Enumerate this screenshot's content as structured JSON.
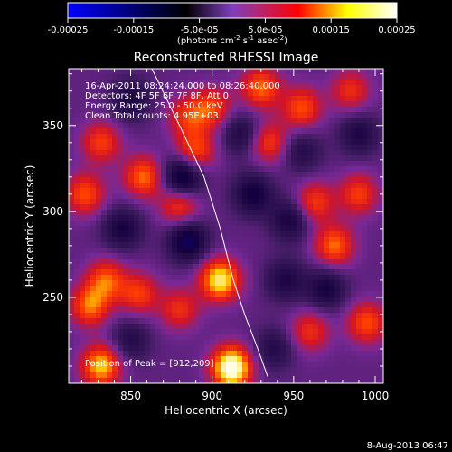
{
  "colorbar": {
    "ticks": [
      {
        "value": -0.00025,
        "label": "-0.00025"
      },
      {
        "value": -0.00015,
        "label": "-0.00015"
      },
      {
        "value": -5e-05,
        "label": "-5.0e-05"
      },
      {
        "value": 5e-05,
        "label": "5.0e-05"
      },
      {
        "value": 0.00015,
        "label": "0.00015"
      },
      {
        "value": 0.00025,
        "label": "0.00025"
      }
    ],
    "range": [
      -0.00025,
      0.00025
    ],
    "units_main": "(photons cm",
    "units_sup1": "-2",
    "units_mid": " s",
    "units_sup2": "-1",
    "units_end": " asec",
    "units_sup3": "-2",
    "units_close": ")"
  },
  "chart_data": {
    "type": "heatmap",
    "title": "Reconstructed RHESSI Image",
    "xlabel": "Heliocentric X (arcsec)",
    "ylabel": "Heliocentric Y (arcsec)",
    "xlim": [
      812,
      1005
    ],
    "ylim": [
      200,
      383
    ],
    "x_ticks": [
      850,
      900,
      950,
      1000
    ],
    "y_ticks": [
      250,
      300,
      350
    ],
    "colorscale": [
      "#0000ff",
      "#000000",
      "#7f3fbf",
      "#ff0000",
      "#ffff00",
      "#ffffff"
    ],
    "limb_curve": [
      [
        863,
        383
      ],
      [
        880,
        350
      ],
      [
        895,
        320
      ],
      [
        905,
        290
      ],
      [
        913,
        260
      ],
      [
        920,
        240
      ],
      [
        928,
        220
      ],
      [
        934,
        204
      ]
    ],
    "annotations": [
      "16-Apr-2011 08:24:24.000 to 08:26:40.000",
      "Detectors: 4F 5F 6F 7F 8F, Att 0",
      "Energy Range: 25.0 - 50.0 keV",
      "Clean     Total counts: 4.95E+03"
    ],
    "peak_label": "Position of Peak = [912,209]",
    "peak": [
      912,
      209
    ],
    "blobs": [
      {
        "x": 912,
        "y": 209,
        "v": 1.0
      },
      {
        "x": 905,
        "y": 260,
        "v": 0.8
      },
      {
        "x": 832,
        "y": 210,
        "v": 0.7
      },
      {
        "x": 825,
        "y": 245,
        "v": 0.55
      },
      {
        "x": 835,
        "y": 260,
        "v": 0.5
      },
      {
        "x": 855,
        "y": 252,
        "v": 0.45
      },
      {
        "x": 822,
        "y": 310,
        "v": 0.5
      },
      {
        "x": 832,
        "y": 340,
        "v": 0.45
      },
      {
        "x": 858,
        "y": 320,
        "v": 0.55
      },
      {
        "x": 880,
        "y": 303,
        "v": 0.45
      },
      {
        "x": 890,
        "y": 335,
        "v": 0.5
      },
      {
        "x": 885,
        "y": 355,
        "v": 0.4
      },
      {
        "x": 930,
        "y": 372,
        "v": 0.55
      },
      {
        "x": 935,
        "y": 340,
        "v": 0.45
      },
      {
        "x": 955,
        "y": 360,
        "v": 0.5
      },
      {
        "x": 963,
        "y": 305,
        "v": 0.45
      },
      {
        "x": 975,
        "y": 280,
        "v": 0.55
      },
      {
        "x": 990,
        "y": 310,
        "v": 0.45
      },
      {
        "x": 985,
        "y": 370,
        "v": 0.4
      },
      {
        "x": 995,
        "y": 235,
        "v": 0.5
      },
      {
        "x": 960,
        "y": 230,
        "v": 0.4
      },
      {
        "x": 880,
        "y": 243,
        "v": 0.4
      },
      {
        "x": 900,
        "y": 360,
        "v": 0.45
      },
      {
        "x": 882,
        "y": 320,
        "v": -0.6
      },
      {
        "x": 885,
        "y": 283,
        "v": -0.55
      },
      {
        "x": 925,
        "y": 310,
        "v": -0.45
      },
      {
        "x": 948,
        "y": 295,
        "v": -0.4
      },
      {
        "x": 970,
        "y": 255,
        "v": -0.4
      },
      {
        "x": 945,
        "y": 260,
        "v": -0.35
      },
      {
        "x": 845,
        "y": 290,
        "v": -0.4
      },
      {
        "x": 850,
        "y": 365,
        "v": -0.35
      },
      {
        "x": 918,
        "y": 345,
        "v": -0.35
      },
      {
        "x": 990,
        "y": 345,
        "v": -0.35
      },
      {
        "x": 850,
        "y": 225,
        "v": -0.3
      },
      {
        "x": 955,
        "y": 335,
        "v": -0.3
      },
      {
        "x": 938,
        "y": 220,
        "v": -0.3
      }
    ]
  },
  "footer_date": "8-Aug-2013 06:47"
}
